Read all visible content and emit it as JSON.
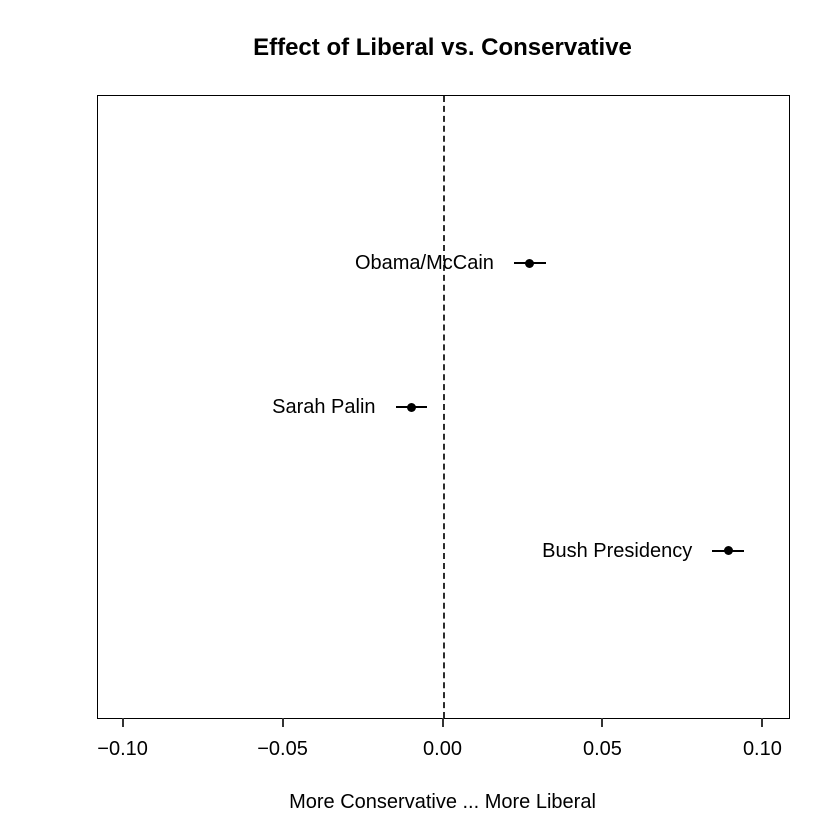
{
  "chart_data": {
    "type": "scatter",
    "subtype": "dot-plot-with-error-bars",
    "title": "Effect of Liberal vs. Conservative",
    "xlabel": "More Conservative ... More Liberal",
    "ylabel": "",
    "xlim": [
      -0.108,
      0.108
    ],
    "ylim": [
      -0.16,
      4.16
    ],
    "grid": false,
    "x_ticks": [
      {
        "value": -0.1,
        "label": "−0.10"
      },
      {
        "value": -0.05,
        "label": "−0.05"
      },
      {
        "value": 0.0,
        "label": "0.00"
      },
      {
        "value": 0.05,
        "label": "0.05"
      },
      {
        "value": 0.1,
        "label": "0.10"
      }
    ],
    "reference_line": {
      "x": 0.0,
      "style": "dashed"
    },
    "points": [
      {
        "label": "Obama/McCain",
        "y": 3,
        "x": 0.027,
        "ci_low": 0.022,
        "ci_high": 0.032
      },
      {
        "label": "Sarah Palin",
        "y": 2,
        "x": -0.01,
        "ci_low": -0.015,
        "ci_high": -0.005
      },
      {
        "label": "Bush Presidency",
        "y": 1,
        "x": 0.089,
        "ci_low": 0.084,
        "ci_high": 0.094
      }
    ],
    "colors": {
      "point": "#000000",
      "error_bar": "#000000",
      "reference_line": "#2b2b2b",
      "text": "#000000",
      "background": "#ffffff"
    }
  }
}
